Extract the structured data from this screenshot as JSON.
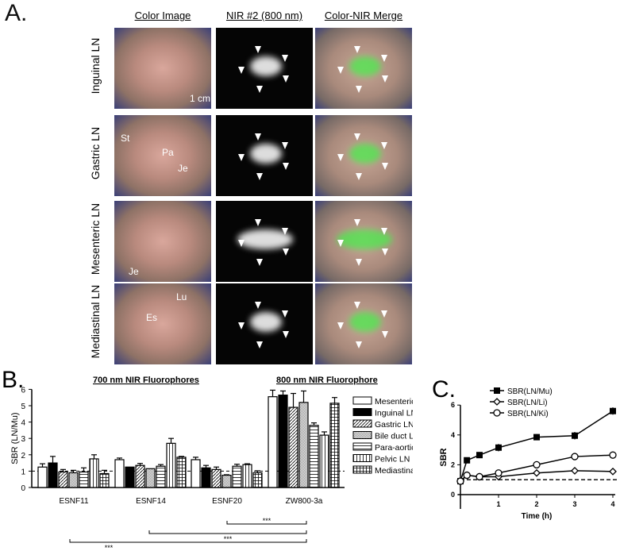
{
  "panel_a": {
    "label": "A.",
    "columns": [
      "Color Image",
      "NIR #2 (800 nm)",
      "Color-NIR Merge"
    ],
    "rows": [
      {
        "label": "Inguinal LN",
        "tags": [
          "1 cm"
        ]
      },
      {
        "label": "Gastric LN",
        "tags": [
          "St",
          "Pa",
          "Je"
        ]
      },
      {
        "label": "Mesenteric LN",
        "tags": [
          "Je"
        ]
      },
      {
        "label": "Mediastinal LN",
        "tags": [
          "Lu",
          "Es"
        ]
      }
    ]
  },
  "chart_data": [
    {
      "type": "bar",
      "panel_label": "B.",
      "title_left": "700 nm NIR Fluorophores",
      "title_right": "800 nm NIR Fluorophore",
      "ylabel": "SBR (LN/Mu)",
      "ylim": [
        0,
        6
      ],
      "yticks": [
        "0",
        "1",
        "2",
        "3",
        "4",
        "5",
        "6"
      ],
      "reference_line": 1,
      "categories": [
        "ESNF11",
        "ESNF14",
        "ESNF20",
        "ZW800-3a"
      ],
      "series": [
        {
          "name": "Mesenteric LN",
          "pattern": "white",
          "values": [
            1.25,
            1.7,
            1.7,
            5.55
          ],
          "errors": [
            0.2,
            0.1,
            0.15,
            0.4
          ]
        },
        {
          "name": "Inguinal LN",
          "pattern": "black",
          "values": [
            1.5,
            1.25,
            1.2,
            5.65
          ],
          "errors": [
            0.4,
            0,
            0.15,
            0.25
          ]
        },
        {
          "name": "Gastric LN",
          "pattern": "diagonal",
          "values": [
            0.95,
            1.35,
            1.1,
            4.9
          ],
          "errors": [
            0.15,
            0.12,
            0.15,
            0.85
          ]
        },
        {
          "name": "Bile duct LN",
          "pattern": "dots",
          "values": [
            0.9,
            1.15,
            0.75,
            5.2
          ],
          "errors": [
            0.15,
            0,
            0.03,
            0.7
          ]
        },
        {
          "name": "Para-aortic LN",
          "pattern": "horizontal",
          "values": [
            0.95,
            1.3,
            1.3,
            3.8
          ],
          "errors": [
            0.25,
            0.1,
            0.12,
            0.15
          ]
        },
        {
          "name": "Pelvic LN",
          "pattern": "vertical",
          "values": [
            1.75,
            2.7,
            1.4,
            3.2
          ],
          "errors": [
            0.25,
            0.3,
            0.05,
            0.2
          ]
        },
        {
          "name": "Mediastinal LN",
          "pattern": "grid",
          "values": [
            0.85,
            1.85,
            0.9,
            5.15
          ],
          "errors": [
            0.2,
            0.05,
            0.12,
            0.35
          ]
        }
      ],
      "significance": [
        {
          "from": "ESNF20",
          "to": "ZW800-3a",
          "label": "***"
        },
        {
          "from": "ESNF14",
          "to": "ZW800-3a",
          "label": "***"
        },
        {
          "from": "ESNF11",
          "to": "ZW800-3a",
          "label": "***"
        }
      ],
      "legend": "right"
    },
    {
      "type": "line",
      "panel_label": "C.",
      "xlabel": "Time (h)",
      "ylabel": "SBR",
      "xlim": [
        0,
        4
      ],
      "ylim": [
        0,
        6
      ],
      "xticks": [
        "1",
        "2",
        "3",
        "4"
      ],
      "yticks": [
        "0",
        "2",
        "4",
        "6"
      ],
      "reference_line": 1,
      "x": [
        0,
        0.17,
        0.5,
        1,
        2,
        3,
        4
      ],
      "series": [
        {
          "name": "SBR(LN/Mu)",
          "marker": "filled-square",
          "values": [
            0.9,
            2.3,
            2.65,
            3.15,
            3.85,
            3.95,
            5.6
          ],
          "errors": [
            0.1,
            0.15,
            0.15,
            0.25,
            0.2,
            0.25,
            0.25
          ]
        },
        {
          "name": "SBR(LN/Li)",
          "marker": "open-diamond",
          "values": [
            0.9,
            1.3,
            1.2,
            1.2,
            1.45,
            1.6,
            1.55
          ],
          "errors": [
            0.1,
            0.05,
            0.05,
            0.05,
            0.05,
            0.1,
            0.05
          ]
        },
        {
          "name": "SBR(LN/Ki)",
          "marker": "open-circle",
          "values": [
            0.9,
            1.3,
            1.2,
            1.45,
            2.0,
            2.55,
            2.65
          ],
          "errors": [
            0.1,
            0.05,
            0.05,
            0.05,
            0.05,
            0.2,
            0.05
          ]
        }
      ],
      "legend": "top-left"
    }
  ]
}
